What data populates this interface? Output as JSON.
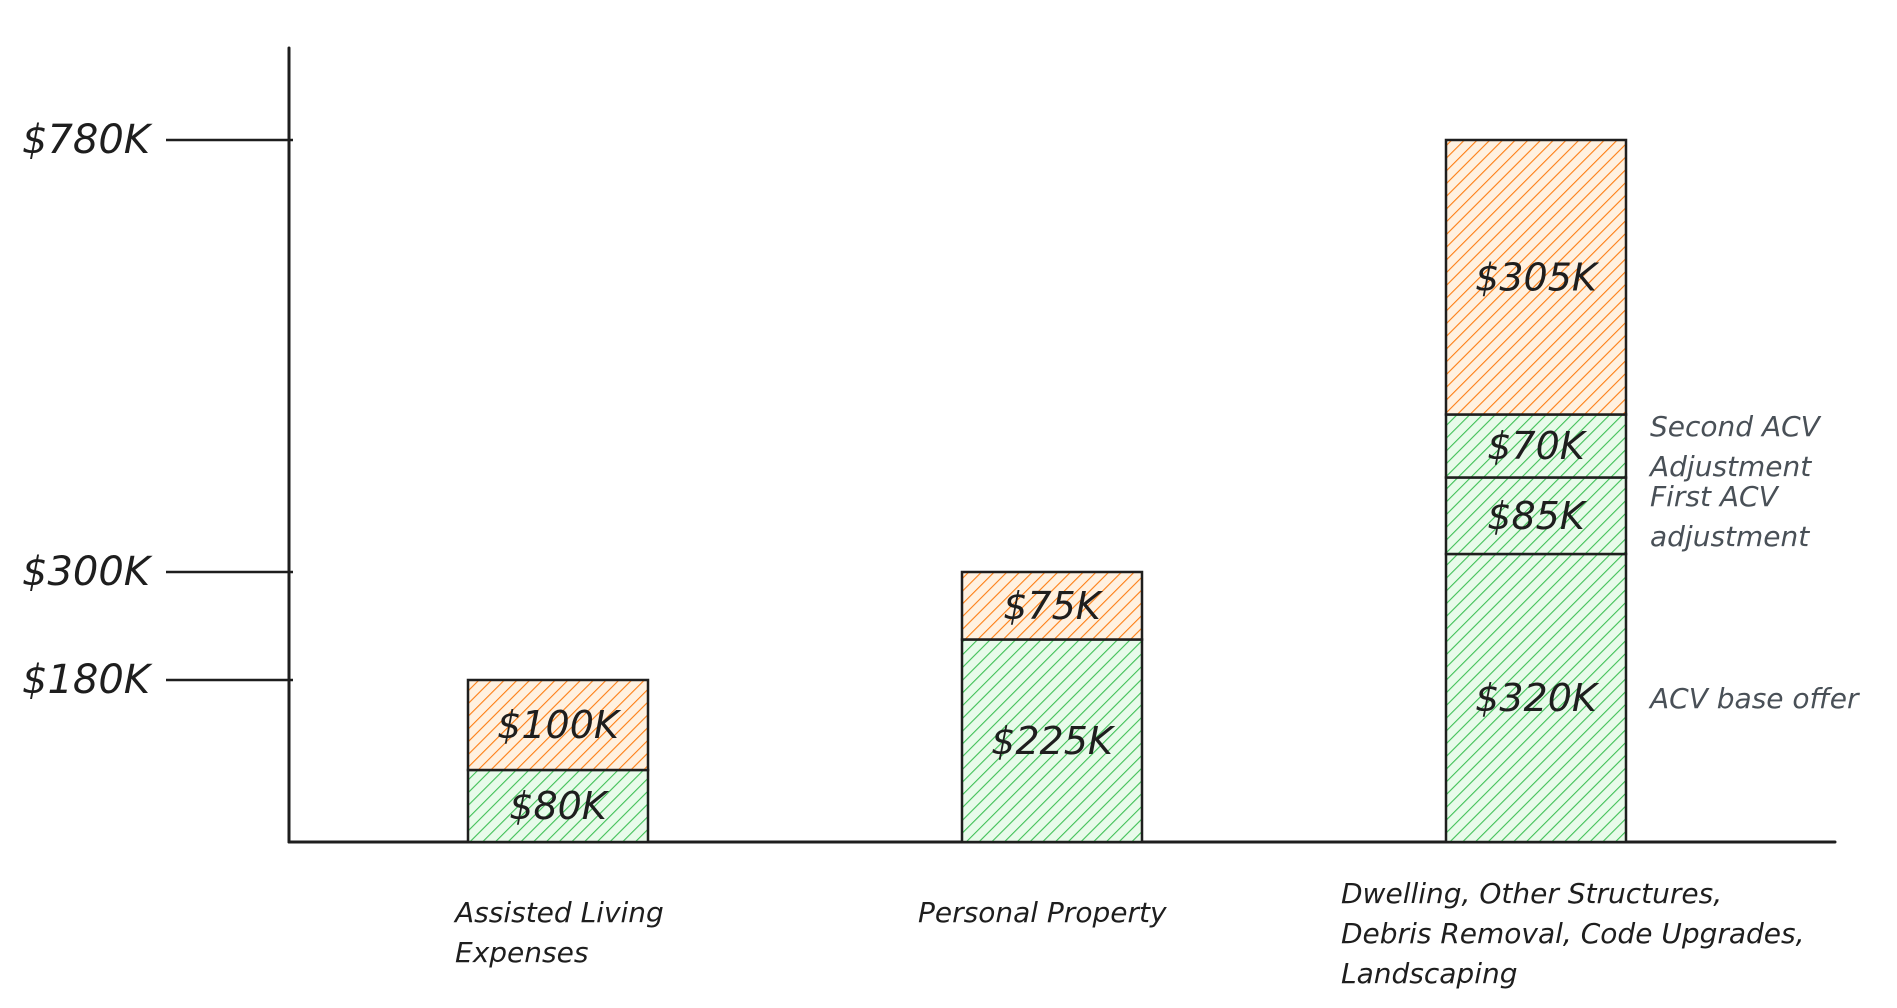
{
  "chart_data": {
    "type": "bar",
    "stacked": true,
    "grid": false,
    "y_ticks": [
      {
        "value": 780,
        "label": "$780K"
      },
      {
        "value": 300,
        "label": "$300K"
      },
      {
        "value": 180,
        "label": "$180K"
      }
    ],
    "categories": [
      {
        "lines": [
          "Assisted Living",
          "Expenses"
        ],
        "segments": [
          {
            "value": 80,
            "label": "$80K",
            "color": "green"
          },
          {
            "value": 100,
            "label": "$100K",
            "color": "orange"
          }
        ]
      },
      {
        "lines": [
          "Personal Property"
        ],
        "segments": [
          {
            "value": 225,
            "label": "$225K",
            "color": "green"
          },
          {
            "value": 75,
            "label": "$75K",
            "color": "orange"
          }
        ]
      },
      {
        "lines": [
          "Dwelling, Other Structures,",
          "Debris Removal, Code Upgrades,",
          "Landscaping"
        ],
        "segments": [
          {
            "value": 320,
            "label": "$320K",
            "color": "green",
            "annotation": [
              "ACV base offer"
            ]
          },
          {
            "value": 85,
            "label": "$85K",
            "color": "green",
            "annotation": [
              "First ACV",
              "adjustment"
            ]
          },
          {
            "value": 70,
            "label": "$70K",
            "color": "green",
            "annotation": [
              "Second ACV",
              "Adjustment"
            ]
          },
          {
            "value": 305,
            "label": "$305K",
            "color": "orange"
          }
        ]
      }
    ],
    "colors": {
      "green_fill": "#b2f2bb",
      "green_hatch": "#40c057",
      "orange_fill": "#ffd8a8",
      "orange_hatch": "#fd7e14",
      "stroke": "#1e1e1e",
      "annotation_text": "#495057"
    }
  }
}
